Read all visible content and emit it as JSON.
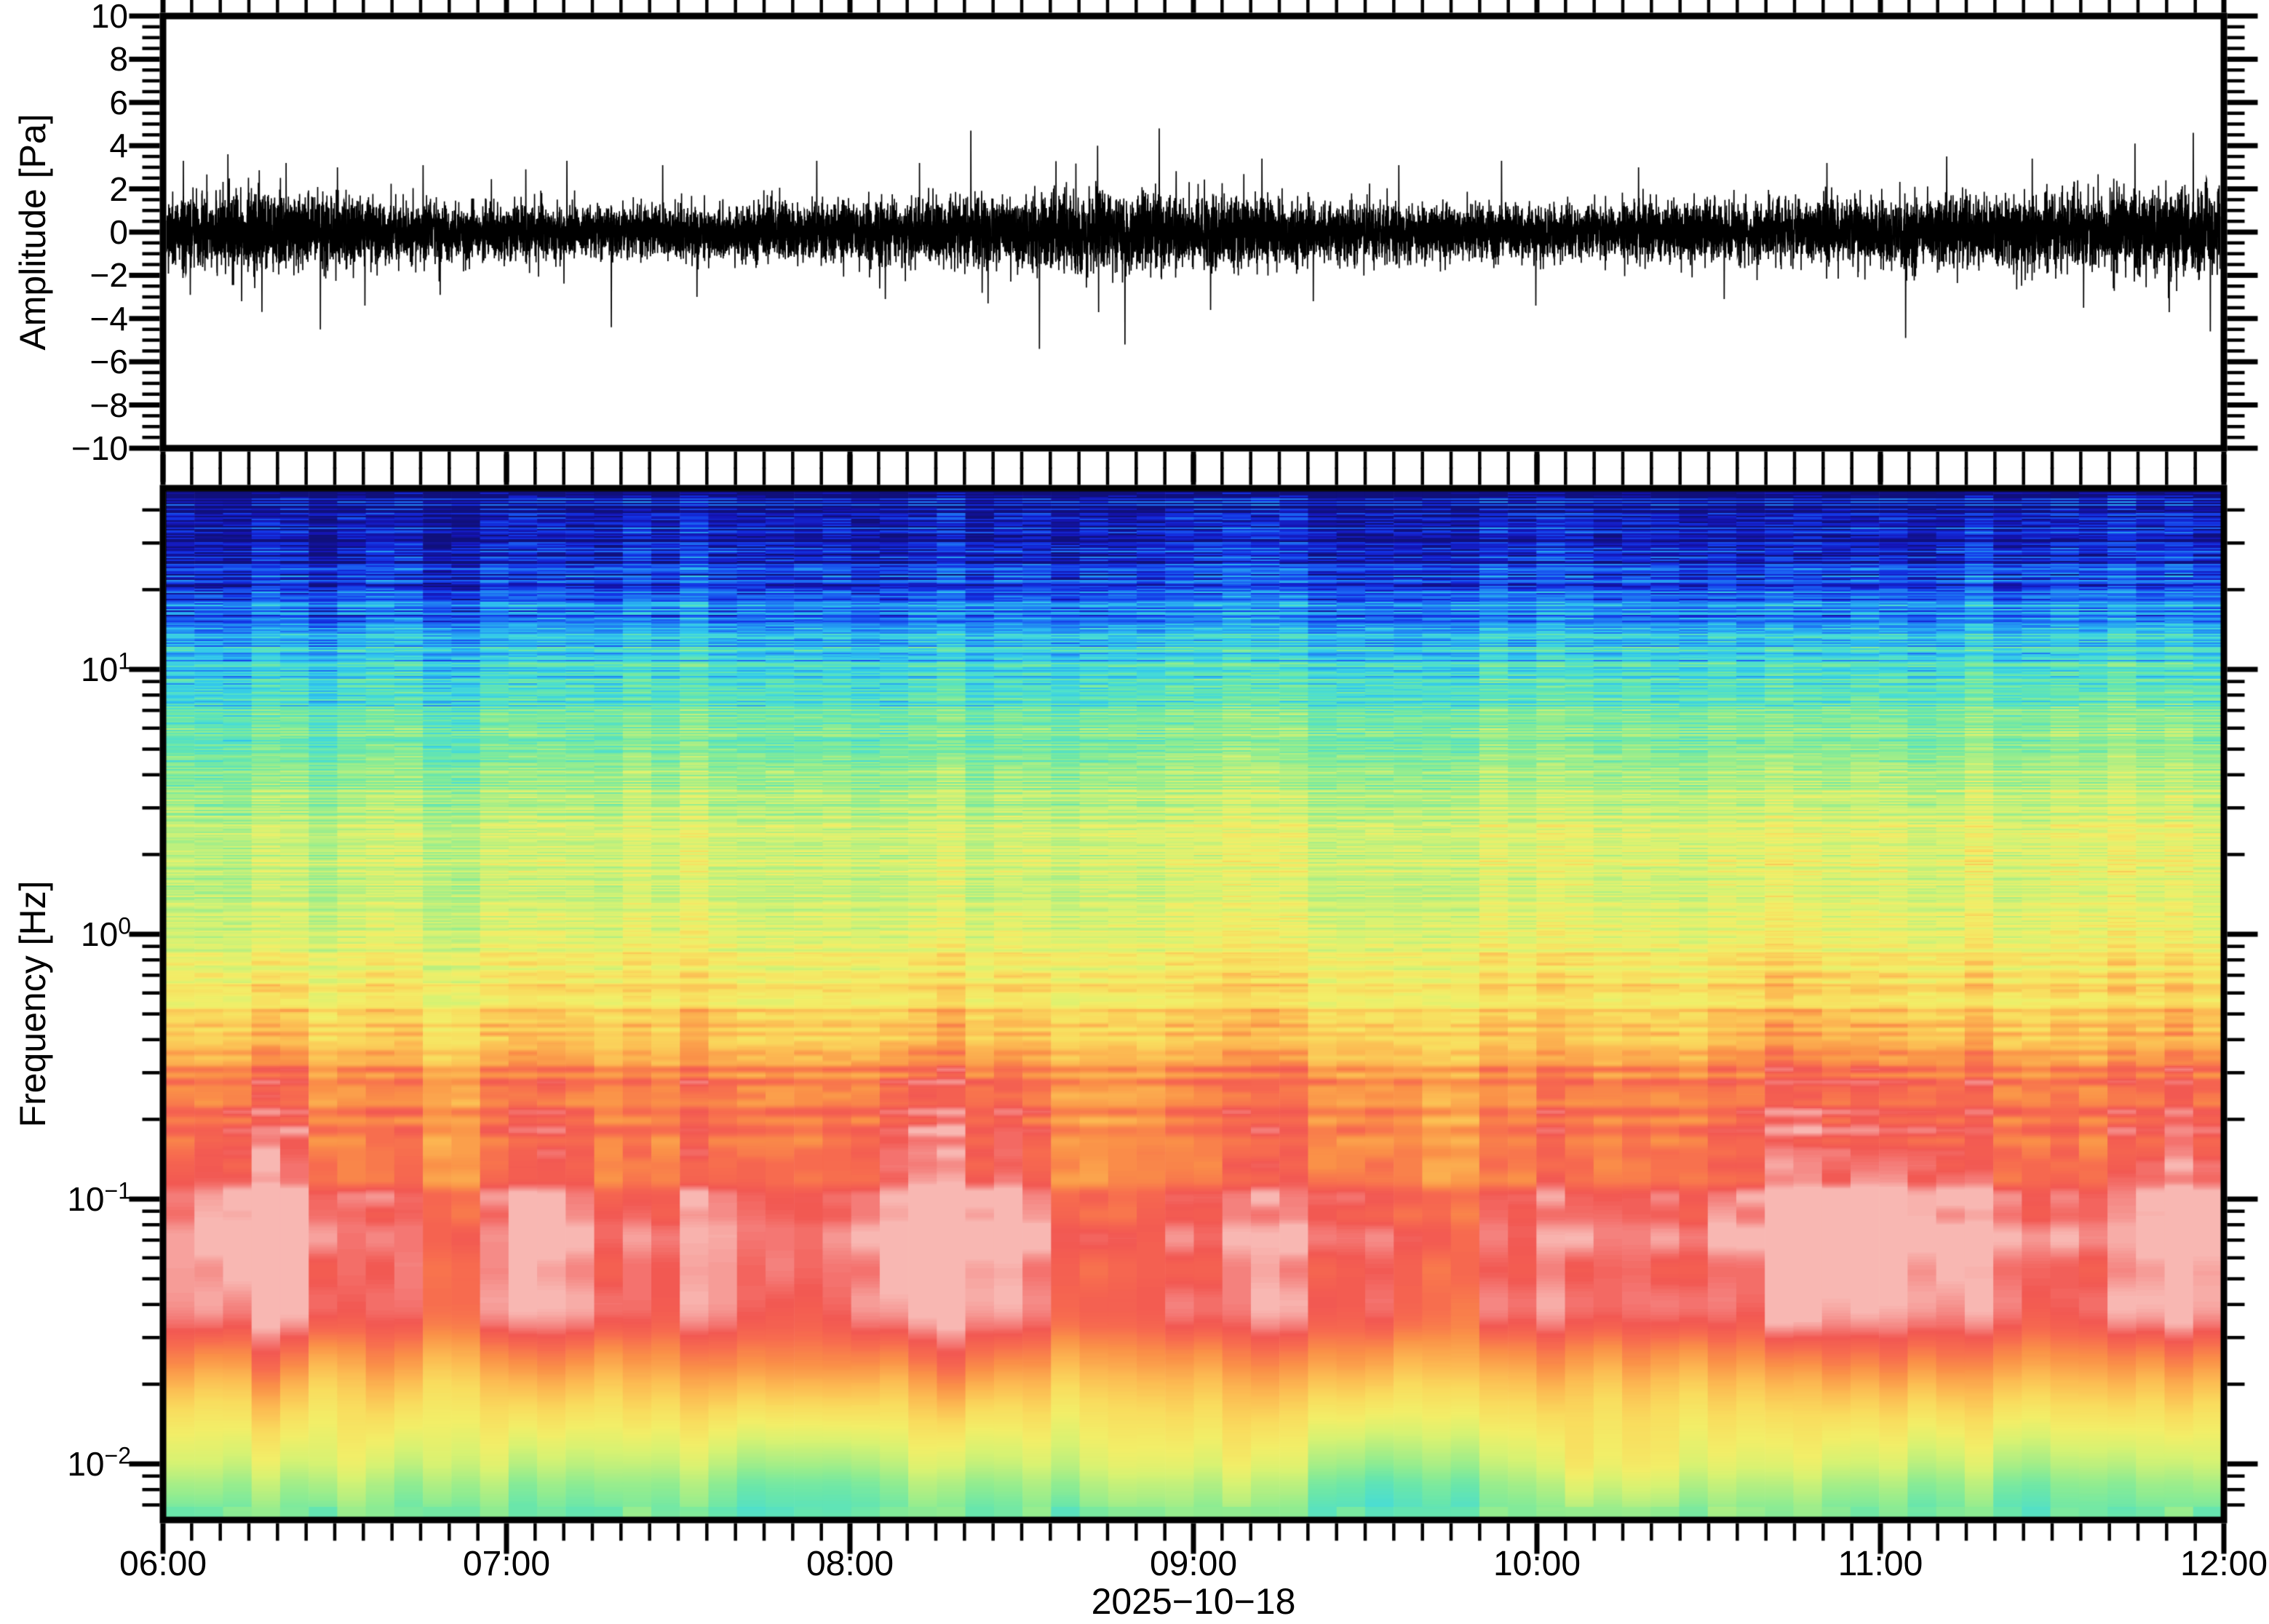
{
  "figure": {
    "background": "#ffffff",
    "frame_color": "#000000",
    "date_label": "2025−10−18"
  },
  "chart_data": [
    {
      "type": "line",
      "panel": "waveform",
      "ylabel": "Amplitude [Pa]",
      "ylim": [
        -10,
        10
      ],
      "ytick_values": [
        10,
        8,
        6,
        4,
        2,
        0,
        -2,
        -4,
        -6,
        -8,
        -10
      ],
      "ytick_labels": [
        "10",
        "8",
        "6",
        "4",
        "2",
        "0",
        "−2",
        "−4",
        "−6",
        "−8",
        "−10"
      ],
      "ytick_minor_step": 0.5,
      "x_start": "06:00",
      "x_end": "12:00",
      "x_minor_minutes": 5,
      "line_color": "#000000",
      "samples": 16000,
      "seed": 1337,
      "noise_envelope_std_pa": [
        [
          0.0,
          0.8
        ],
        [
          0.35,
          0.9
        ],
        [
          0.7,
          0.72
        ],
        [
          1.0,
          0.62
        ],
        [
          1.4,
          0.57
        ],
        [
          1.8,
          0.68
        ],
        [
          2.3,
          0.74
        ],
        [
          2.6,
          0.9
        ],
        [
          3.0,
          0.84
        ],
        [
          3.3,
          0.68
        ],
        [
          3.7,
          0.6
        ],
        [
          4.3,
          0.62
        ],
        [
          4.8,
          0.68
        ],
        [
          5.2,
          0.8
        ],
        [
          5.6,
          0.84
        ],
        [
          6.0,
          0.97
        ]
      ],
      "spikes_hour_pa": [
        [
          0.05,
          3.3
        ],
        [
          0.07,
          -2.9
        ],
        [
          0.18,
          3.6
        ],
        [
          0.22,
          -3.2
        ],
        [
          0.35,
          3.2
        ],
        [
          0.45,
          -4.5
        ],
        [
          0.5,
          3.0
        ],
        [
          0.58,
          -3.4
        ],
        [
          0.75,
          3.1
        ],
        [
          0.8,
          -2.9
        ],
        [
          1.05,
          2.9
        ],
        [
          1.17,
          3.3
        ],
        [
          1.3,
          -4.4
        ],
        [
          1.45,
          3.1
        ],
        [
          1.55,
          -3.0
        ],
        [
          1.9,
          3.3
        ],
        [
          2.1,
          -3.1
        ],
        [
          2.2,
          3.2
        ],
        [
          2.35,
          4.7
        ],
        [
          2.4,
          -3.3
        ],
        [
          2.55,
          -5.4
        ],
        [
          2.72,
          4.0
        ],
        [
          2.8,
          -5.2
        ],
        [
          2.9,
          4.8
        ],
        [
          3.05,
          -3.6
        ],
        [
          3.2,
          3.4
        ],
        [
          3.35,
          -3.2
        ],
        [
          3.6,
          3.1
        ],
        [
          3.9,
          3.3
        ],
        [
          4.0,
          -3.4
        ],
        [
          4.3,
          3.0
        ],
        [
          4.55,
          -3.1
        ],
        [
          4.85,
          3.2
        ],
        [
          5.08,
          -4.9
        ],
        [
          5.2,
          3.5
        ],
        [
          5.45,
          3.4
        ],
        [
          5.6,
          -3.5
        ],
        [
          5.75,
          4.1
        ],
        [
          5.85,
          -3.7
        ],
        [
          5.92,
          4.6
        ],
        [
          5.97,
          -4.6
        ]
      ]
    },
    {
      "type": "heatmap",
      "panel": "spectrogram",
      "ylabel": "Frequency [Hz]",
      "yscale": "log",
      "ylim_hz": [
        0.0069,
        49.0
      ],
      "ytick_exponents": [
        1,
        0,
        -1,
        -2
      ],
      "xticks": [
        "06:00",
        "07:00",
        "08:00",
        "09:00",
        "10:00",
        "11:00",
        "12:00"
      ],
      "xlabel": "2025−10−18",
      "x_minor_minutes": 5,
      "time_bins": 72,
      "freq_bin_hz": 0.016,
      "freq_min_hz": 0.0069,
      "seed": 777,
      "colormap": [
        [
          0.0,
          "#0f0f70"
        ],
        [
          0.05,
          "#1414b4"
        ],
        [
          0.1,
          "#1332e4"
        ],
        [
          0.16,
          "#1b64f2"
        ],
        [
          0.22,
          "#2498f2"
        ],
        [
          0.28,
          "#30c5ee"
        ],
        [
          0.34,
          "#49ddd3"
        ],
        [
          0.4,
          "#68e6ac"
        ],
        [
          0.46,
          "#8eec92"
        ],
        [
          0.52,
          "#b4ef81"
        ],
        [
          0.58,
          "#d8f272"
        ],
        [
          0.64,
          "#f2ee68"
        ],
        [
          0.7,
          "#f9dc5e"
        ],
        [
          0.76,
          "#fcba52"
        ],
        [
          0.82,
          "#fa9148"
        ],
        [
          0.875,
          "#f76b4f"
        ],
        [
          0.92,
          "#f25852"
        ],
        [
          0.96,
          "#f58a86"
        ],
        [
          1.0,
          "#f9c2bd"
        ]
      ],
      "freq_profile_log10hz_intensity": [
        [
          1.7,
          0.02
        ],
        [
          1.6,
          0.035
        ],
        [
          1.4,
          0.1
        ],
        [
          1.2,
          0.19
        ],
        [
          1.08,
          0.27
        ],
        [
          0.93,
          0.33
        ],
        [
          0.8,
          0.41
        ],
        [
          0.53,
          0.5
        ],
        [
          0.26,
          0.56
        ],
        [
          0.0,
          0.59
        ],
        [
          -0.15,
          0.64
        ],
        [
          -0.35,
          0.73
        ],
        [
          -0.46,
          0.8
        ],
        [
          -0.55,
          0.85
        ],
        [
          -0.72,
          0.9
        ],
        [
          -0.89,
          0.92
        ],
        [
          -1.1,
          0.965
        ],
        [
          -1.3,
          0.94
        ],
        [
          -1.48,
          0.9
        ],
        [
          -1.62,
          0.83
        ],
        [
          -1.74,
          0.74
        ],
        [
          -1.89,
          0.63
        ],
        [
          -2.0,
          0.55
        ],
        [
          -2.07,
          0.48
        ],
        [
          -2.16,
          0.42
        ]
      ],
      "stripe_strength_log10hz": [
        [
          1.7,
          0.12
        ],
        [
          1.0,
          0.1
        ],
        [
          0.3,
          0.07
        ],
        [
          -0.5,
          0.05
        ],
        [
          -1.4,
          0.045
        ],
        [
          -2.2,
          0.05
        ]
      ],
      "cell_strength": 0.05,
      "blob_strength": 0.085,
      "column_strength": 0.032,
      "right_trend_strength": 0.07,
      "anomalies": [
        {
          "hour_offset": 4.67,
          "boost": 0.06
        }
      ]
    }
  ]
}
